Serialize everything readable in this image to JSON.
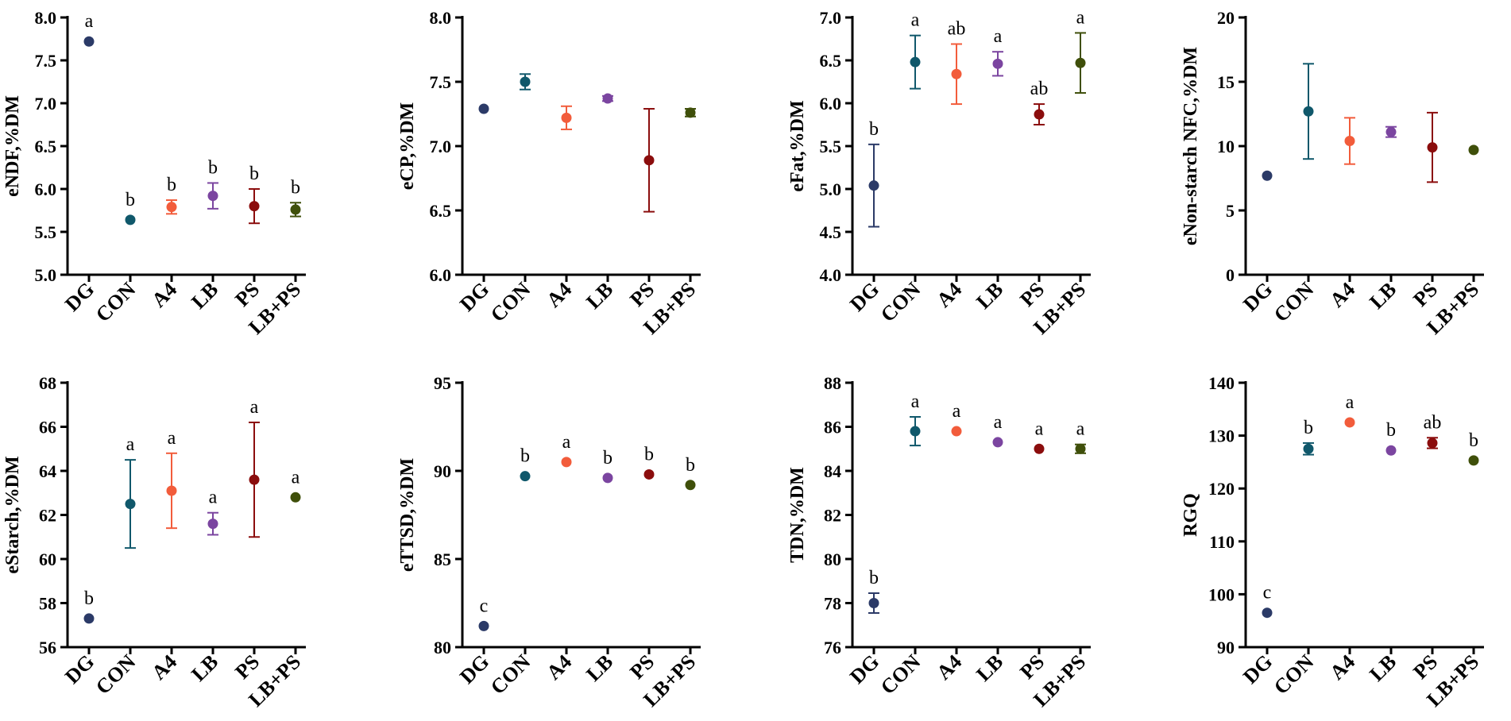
{
  "colors": {
    "DG": "#2b3a67",
    "CON": "#10586b",
    "A4": "#f25c3b",
    "LB": "#7b45a0",
    "PS": "#8b0d0d",
    "LB+PS": "#3f4f0a"
  },
  "chart_data": [
    {
      "type": "scatter",
      "ylabel": "eNDF,%DM",
      "categories": [
        "DG",
        "CON",
        "A4",
        "LB",
        "PS",
        "LB+PS"
      ],
      "ylim": [
        5.0,
        8.0
      ],
      "yticks": [
        "5.0",
        "5.5",
        "6.0",
        "6.5",
        "7.0",
        "7.5",
        "8.0"
      ],
      "values": [
        7.72,
        5.64,
        5.79,
        5.92,
        5.8,
        5.76
      ],
      "errors": [
        0.0,
        0.0,
        0.08,
        0.15,
        0.2,
        0.08
      ],
      "letters": [
        "a",
        "b",
        "b",
        "b",
        "b",
        "b"
      ]
    },
    {
      "type": "scatter",
      "ylabel": "eCP,%DM",
      "categories": [
        "DG",
        "CON",
        "A4",
        "LB",
        "PS",
        "LB+PS"
      ],
      "ylim": [
        6.0,
        8.0
      ],
      "yticks": [
        "6.0",
        "6.5",
        "7.0",
        "7.5",
        "8.0"
      ],
      "values": [
        7.29,
        7.5,
        7.22,
        7.37,
        6.89,
        7.26
      ],
      "errors": [
        0.0,
        0.06,
        0.09,
        0.02,
        0.4,
        0.03
      ],
      "letters": [
        "",
        "",
        "",
        "",
        "",
        ""
      ]
    },
    {
      "type": "scatter",
      "ylabel": "eFat,%DM",
      "categories": [
        "DG",
        "CON",
        "A4",
        "LB",
        "PS",
        "LB+PS"
      ],
      "ylim": [
        4.0,
        7.0
      ],
      "yticks": [
        "4.0",
        "4.5",
        "5.0",
        "5.5",
        "6.0",
        "6.5",
        "7.0"
      ],
      "values": [
        5.04,
        6.48,
        6.34,
        6.46,
        5.87,
        6.47
      ],
      "errors": [
        0.48,
        0.31,
        0.35,
        0.14,
        0.12,
        0.35
      ],
      "letters": [
        "b",
        "a",
        "ab",
        "a",
        "ab",
        "a"
      ]
    },
    {
      "type": "scatter",
      "ylabel": "eNon-starch NFC,%DM",
      "categories": [
        "DG",
        "CON",
        "A4",
        "LB",
        "PS",
        "LB+PS"
      ],
      "ylim": [
        0,
        20
      ],
      "yticks": [
        "0",
        "5",
        "10",
        "15",
        "20"
      ],
      "values": [
        7.7,
        12.7,
        10.4,
        11.1,
        9.9,
        9.7
      ],
      "errors": [
        0.0,
        3.7,
        1.8,
        0.4,
        2.7,
        0.0
      ],
      "letters": [
        "",
        "",
        "",
        "",
        "",
        ""
      ]
    },
    {
      "type": "scatter",
      "ylabel": "eStarch,%DM",
      "categories": [
        "DG",
        "CON",
        "A4",
        "LB",
        "PS",
        "LB+PS"
      ],
      "ylim": [
        56,
        68
      ],
      "yticks": [
        "56",
        "58",
        "60",
        "62",
        "64",
        "66",
        "68"
      ],
      "values": [
        57.3,
        62.5,
        63.1,
        61.6,
        63.6,
        62.8
      ],
      "errors": [
        0.0,
        2.0,
        1.7,
        0.5,
        2.6,
        0.0
      ],
      "letters": [
        "b",
        "a",
        "a",
        "a",
        "a",
        "a"
      ]
    },
    {
      "type": "scatter",
      "ylabel": "eTTSD,%DM",
      "categories": [
        "DG",
        "CON",
        "A4",
        "LB",
        "PS",
        "LB+PS"
      ],
      "ylim": [
        80,
        95
      ],
      "yticks": [
        "80",
        "85",
        "90",
        "95"
      ],
      "values": [
        81.2,
        89.7,
        90.5,
        89.6,
        89.8,
        89.2
      ],
      "errors": [
        0.0,
        0.0,
        0.0,
        0.0,
        0.0,
        0.0
      ],
      "letters": [
        "c",
        "b",
        "a",
        "b",
        "b",
        "b"
      ]
    },
    {
      "type": "scatter",
      "ylabel": "TDN,%DM",
      "categories": [
        "DG",
        "CON",
        "A4",
        "LB",
        "PS",
        "LB+PS"
      ],
      "ylim": [
        76,
        88
      ],
      "yticks": [
        "76",
        "78",
        "80",
        "82",
        "84",
        "86",
        "88"
      ],
      "values": [
        78.0,
        85.8,
        85.8,
        85.3,
        85.0,
        85.0
      ],
      "errors": [
        0.45,
        0.65,
        0.0,
        0.0,
        0.0,
        0.2
      ],
      "letters": [
        "b",
        "a",
        "a",
        "a",
        "a",
        "a"
      ]
    },
    {
      "type": "scatter",
      "ylabel": "RGQ",
      "categories": [
        "DG",
        "CON",
        "A4",
        "LB",
        "PS",
        "LB+PS"
      ],
      "ylim": [
        90,
        140
      ],
      "yticks": [
        "90",
        "100",
        "110",
        "120",
        "130",
        "140"
      ],
      "values": [
        96.5,
        127.5,
        132.5,
        127.2,
        128.6,
        125.3
      ],
      "errors": [
        0.0,
        1.1,
        0.0,
        0.0,
        1.0,
        0.0
      ],
      "letters": [
        "c",
        "b",
        "a",
        "b",
        "ab",
        "b"
      ]
    }
  ]
}
